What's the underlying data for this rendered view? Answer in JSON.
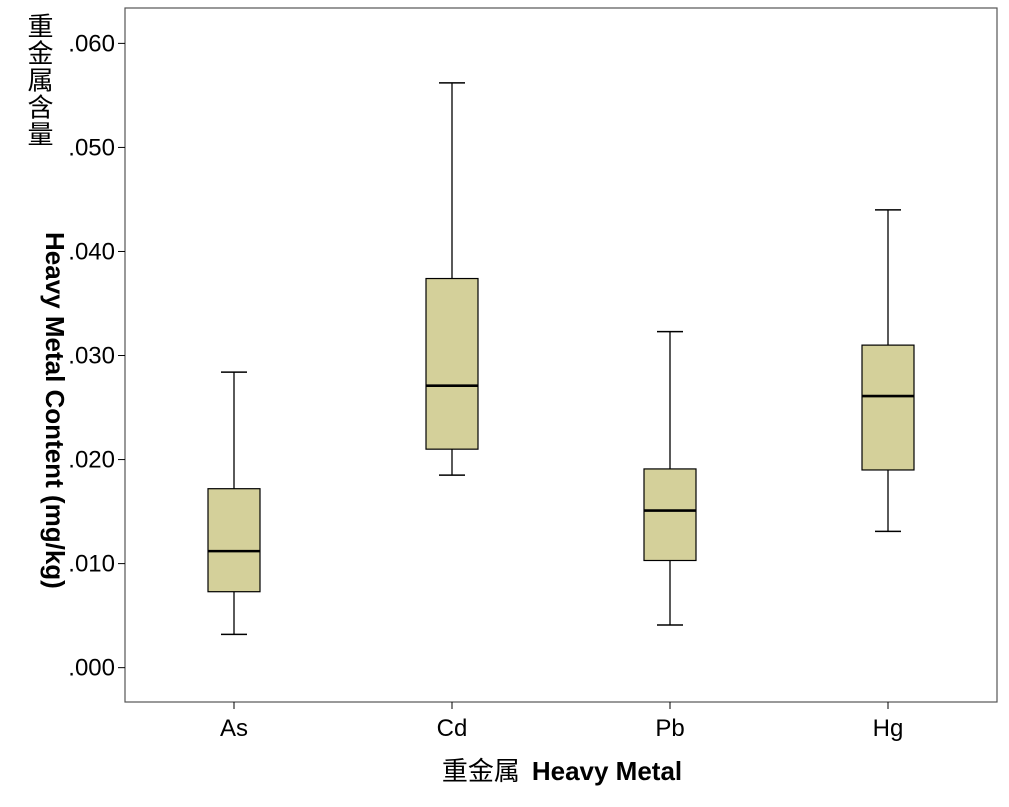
{
  "chart_data": {
    "type": "boxplot",
    "xlabel": "重金属 Heavy Metal",
    "xlabel_cjk": "重金属",
    "xlabel_en": "Heavy Metal",
    "ylabel_cjk": "重金属含量",
    "ylabel_en": "Heavy Metal Content (mg/kg)",
    "ylim": [
      -0.0033,
      0.0634
    ],
    "yticks": [
      {
        "value": 0.0,
        "label": ".000"
      },
      {
        "value": 0.01,
        "label": ".010"
      },
      {
        "value": 0.02,
        "label": ".020"
      },
      {
        "value": 0.03,
        "label": ".030"
      },
      {
        "value": 0.04,
        "label": ".040"
      },
      {
        "value": 0.05,
        "label": ".050"
      },
      {
        "value": 0.06,
        "label": ".060"
      }
    ],
    "grid": false,
    "box_color": "#d4d09a",
    "categories": [
      "As",
      "Cd",
      "Pb",
      "Hg"
    ],
    "boxes": [
      {
        "category": "As",
        "min": 0.0032,
        "q1": 0.0073,
        "median": 0.0112,
        "q3": 0.0172,
        "max": 0.0284
      },
      {
        "category": "Cd",
        "min": 0.0185,
        "q1": 0.021,
        "median": 0.0271,
        "q3": 0.0374,
        "max": 0.0562
      },
      {
        "category": "Pb",
        "min": 0.0041,
        "q1": 0.0103,
        "median": 0.0151,
        "q3": 0.0191,
        "max": 0.0323
      },
      {
        "category": "Hg",
        "min": 0.0131,
        "q1": 0.019,
        "median": 0.0261,
        "q3": 0.031,
        "max": 0.044
      }
    ]
  }
}
